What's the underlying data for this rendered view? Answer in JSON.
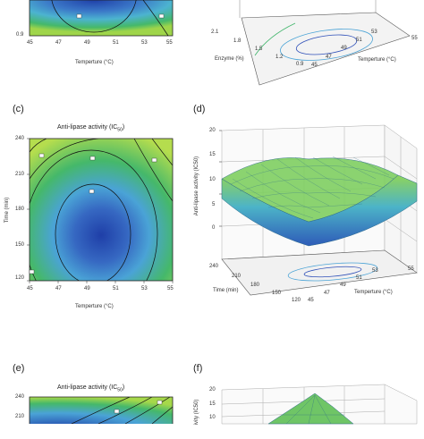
{
  "panels": {
    "a": {
      "x_ticks": [
        "45",
        "47",
        "49",
        "51",
        "53",
        "55"
      ],
      "y_ticks": [
        "0.9"
      ],
      "xlabel": "Temperture (°C)"
    },
    "b": {
      "enzyme_ticks": [
        "2.1",
        "1.8",
        "1.5",
        "1.2",
        "0.9"
      ],
      "temp_ticks": [
        "45",
        "47",
        "49",
        "51",
        "53",
        "55"
      ],
      "enzyme_label": "Enzyme (%)",
      "temp_label": "Temperture (°C)"
    },
    "c": {
      "letter": "(c)",
      "title": "Anti-lipase activity (IC",
      "title_sub": "50",
      "title_close": ")",
      "x_ticks": [
        "45",
        "47",
        "49",
        "51",
        "53",
        "55"
      ],
      "y_ticks": [
        "240",
        "210",
        "180",
        "150",
        "120"
      ],
      "xlabel": "Temperture (°C)",
      "ylabel": "Time (min)"
    },
    "d": {
      "letter": "(d)",
      "z_ticks": [
        "20",
        "15",
        "10",
        "5",
        "0"
      ],
      "zlabel": "Anti-lipase activity (IC50)",
      "time_ticks": [
        "240",
        "210",
        "180",
        "150",
        "120"
      ],
      "temp_ticks": [
        "45",
        "47",
        "49",
        "51",
        "53",
        "55"
      ],
      "time_label": "Time (min)",
      "temp_label": "Temperture (°C)"
    },
    "e": {
      "letter": "(e)",
      "title": "Anti-lipase activity (IC",
      "title_sub": "50",
      "title_close": ")",
      "y_ticks": [
        "240",
        "210"
      ]
    },
    "f": {
      "letter": "(f)",
      "z_ticks": [
        "20",
        "15",
        "10"
      ],
      "zlabel_partial": "ivity (IC50)"
    }
  },
  "colors": {
    "center": "#2e4fb8",
    "mid": "#4aa3d6",
    "outer": "#3fb56a",
    "edge": "#a6d84a",
    "contour": "#111111",
    "grid": "#999999"
  },
  "chart_data": [
    {
      "type": "heatmap",
      "panel": "a",
      "xlabel": "Temperture (°C)",
      "x_range": [
        45,
        55
      ],
      "y_tick_visible": [
        0.9
      ]
    },
    {
      "type": "heatmap",
      "panel": "b",
      "xlabel": "Temperture (°C)",
      "ylabel": "Enzyme (%)",
      "x_range": [
        45,
        55
      ],
      "y_range": [
        0.9,
        2.1
      ]
    },
    {
      "type": "heatmap",
      "panel": "c",
      "title": "Anti-lipase activity (IC50)",
      "xlabel": "Temperture (°C)",
      "ylabel": "Time (min)",
      "x_range": [
        45,
        55
      ],
      "y_range": [
        120,
        240
      ],
      "minimum_approx": {
        "x": 49.8,
        "y": 160
      }
    },
    {
      "type": "heatmap",
      "panel": "d",
      "zlabel": "Anti-lipase activity (IC50)",
      "x_range": [
        45,
        55
      ],
      "y_range": [
        120,
        240
      ],
      "z_range": [
        0,
        20
      ]
    },
    {
      "type": "heatmap",
      "panel": "e",
      "title": "Anti-lipase activity (IC50)",
      "y_range": [
        120,
        240
      ]
    },
    {
      "type": "heatmap",
      "panel": "f",
      "z_range": [
        0,
        20
      ]
    }
  ]
}
